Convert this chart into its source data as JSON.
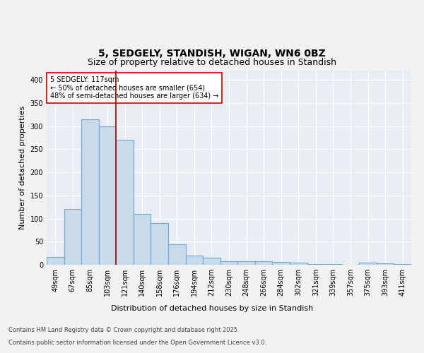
{
  "title1": "5, SEDGELY, STANDISH, WIGAN, WN6 0BZ",
  "title2": "Size of property relative to detached houses in Standish",
  "xlabel": "Distribution of detached houses by size in Standish",
  "ylabel": "Number of detached properties",
  "categories": [
    "49sqm",
    "67sqm",
    "85sqm",
    "103sqm",
    "121sqm",
    "140sqm",
    "158sqm",
    "176sqm",
    "194sqm",
    "212sqm",
    "230sqm",
    "248sqm",
    "266sqm",
    "284sqm",
    "302sqm",
    "321sqm",
    "339sqm",
    "357sqm",
    "375sqm",
    "393sqm",
    "411sqm"
  ],
  "values": [
    17,
    120,
    315,
    300,
    270,
    110,
    90,
    45,
    20,
    15,
    8,
    7,
    7,
    6,
    5,
    2,
    2,
    0,
    5,
    3,
    1
  ],
  "bar_color": "#c9daea",
  "bar_edge_color": "#6aaad4",
  "bar_edge_width": 0.8,
  "vline_x": 3.5,
  "vline_color": "#aa0000",
  "annotation_text": "5 SEDGELY: 117sqm\n← 50% of detached houses are smaller (654)\n48% of semi-detached houses are larger (634) →",
  "annotation_box_facecolor": "#ffffff",
  "annotation_box_edgecolor": "#cc0000",
  "ylim": [
    0,
    420
  ],
  "yticks": [
    0,
    50,
    100,
    150,
    200,
    250,
    300,
    350,
    400
  ],
  "plot_bg_color": "#e8edf4",
  "fig_bg_color": "#f2f2f2",
  "footer_line1": "Contains HM Land Registry data © Crown copyright and database right 2025.",
  "footer_line2": "Contains public sector information licensed under the Open Government Licence v3.0.",
  "title_fontsize": 10,
  "subtitle_fontsize": 9,
  "axis_label_fontsize": 8,
  "tick_fontsize": 7,
  "annotation_fontsize": 7,
  "footer_fontsize": 6
}
